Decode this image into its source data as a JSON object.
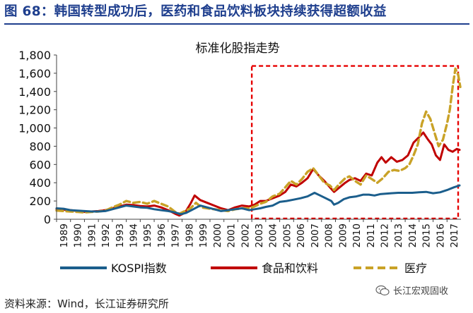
{
  "figure": {
    "title": "图 68：韩国转型成功后，医药和食品饮料板块持续获得超额收益",
    "source": "资料来源：Wind，长江证券研究所",
    "watermark": "长江宏观固收"
  },
  "colors": {
    "title": "#1f3f8e",
    "kospi": "#1b5e8c",
    "food": "#c00000",
    "medical": "#c9a227",
    "highlight_box": "#e60000"
  },
  "chart_data": {
    "type": "line",
    "title": "标准化股指走势",
    "xlabel": "",
    "ylabel": "",
    "ylim": [
      0,
      1800
    ],
    "yticks": [
      0,
      200,
      400,
      600,
      800,
      1000,
      1200,
      1400,
      1600,
      1800
    ],
    "ytick_labels": [
      "0",
      "200",
      "400",
      "600",
      "800",
      "1,000",
      "1,200",
      "1,400",
      "1,600",
      "1,800"
    ],
    "xlim": [
      1989,
      2018
    ],
    "xticks": [
      "1989",
      "1990",
      "1991",
      "1992",
      "1993",
      "1994",
      "1995",
      "1996",
      "1997",
      "1998",
      "1999",
      "2000",
      "2001",
      "2002",
      "2003",
      "2004",
      "2005",
      "2006",
      "2007",
      "2008",
      "2009",
      "2010",
      "2011",
      "2012",
      "2013",
      "2014",
      "2015",
      "2016",
      "2017"
    ],
    "highlight": {
      "x_start": 2003.0,
      "x_end": 2018.0,
      "y_start": 0,
      "y_end": 1680,
      "note": "red dashed rectangle"
    },
    "legend": {
      "position": "bottom"
    },
    "series": [
      {
        "name": "KOSPI指数",
        "style": "solid",
        "color": "#1b5e8c",
        "x": [
          1989,
          1989.5,
          1990,
          1990.5,
          1991,
          1991.5,
          1992,
          1992.5,
          1993,
          1993.5,
          1994,
          1994.5,
          1995,
          1995.5,
          1996,
          1996.5,
          1997,
          1997.5,
          1997.9,
          1998.3,
          1998.8,
          1999.3,
          1999.8,
          2000.3,
          2000.8,
          2001.3,
          2001.8,
          2002.3,
          2002.8,
          2003.2,
          2003.6,
          2004.0,
          2004.5,
          2005.0,
          2005.5,
          2006.0,
          2006.5,
          2007.0,
          2007.5,
          2007.9,
          2008.3,
          2008.7,
          2008.9,
          2009.2,
          2009.6,
          2010.0,
          2010.5,
          2011.0,
          2011.4,
          2011.8,
          2012.2,
          2012.6,
          2013.0,
          2013.5,
          2014.0,
          2014.5,
          2015.0,
          2015.5,
          2016.0,
          2016.5,
          2017.0,
          2017.5,
          2017.9
        ],
        "values": [
          120,
          115,
          100,
          95,
          90,
          85,
          85,
          90,
          110,
          130,
          150,
          140,
          130,
          125,
          110,
          100,
          90,
          75,
          55,
          70,
          110,
          150,
          130,
          110,
          90,
          100,
          110,
          120,
          100,
          110,
          120,
          135,
          150,
          190,
          200,
          215,
          230,
          250,
          290,
          260,
          230,
          200,
          160,
          180,
          220,
          240,
          250,
          270,
          270,
          260,
          275,
          280,
          285,
          290,
          290,
          290,
          295,
          300,
          285,
          295,
          320,
          350,
          370
        ]
      },
      {
        "name": "食品和饮料",
        "style": "solid",
        "color": "#c00000",
        "x": [
          1989,
          1989.5,
          1990,
          1990.5,
          1991,
          1991.5,
          1992,
          1992.5,
          1993,
          1993.5,
          1994,
          1994.5,
          1995,
          1995.5,
          1996,
          1996.5,
          1997,
          1997.5,
          1997.8,
          1998.2,
          1998.6,
          1998.9,
          1999.3,
          1999.8,
          2000.3,
          2000.8,
          2001.3,
          2001.8,
          2002.3,
          2002.8,
          2003.2,
          2003.6,
          2004.0,
          2004.5,
          2005.0,
          2005.4,
          2005.8,
          2006.2,
          2006.6,
          2007.0,
          2007.4,
          2007.8,
          2008.2,
          2008.6,
          2008.9,
          2009.3,
          2009.7,
          2010.0,
          2010.4,
          2010.8,
          2011.2,
          2011.6,
          2012.0,
          2012.3,
          2012.6,
          2013.0,
          2013.4,
          2013.8,
          2014.2,
          2014.6,
          2015.0,
          2015.3,
          2015.6,
          2015.9,
          2016.2,
          2016.5,
          2016.8,
          2017.1,
          2017.4,
          2017.7,
          2017.9
        ],
        "values": [
          110,
          105,
          100,
          90,
          80,
          85,
          90,
          100,
          120,
          140,
          160,
          155,
          145,
          140,
          150,
          130,
          100,
          60,
          40,
          70,
          170,
          260,
          210,
          180,
          150,
          120,
          100,
          130,
          150,
          140,
          160,
          200,
          200,
          230,
          260,
          300,
          380,
          360,
          400,
          450,
          550,
          480,
          420,
          350,
          300,
          350,
          400,
          430,
          450,
          420,
          500,
          480,
          620,
          680,
          620,
          680,
          630,
          650,
          700,
          840,
          900,
          950,
          880,
          820,
          700,
          650,
          820,
          760,
          740,
          770,
          760
        ]
      },
      {
        "name": "医疗",
        "style": "dashed",
        "color": "#c9a227",
        "x": [
          1989,
          1989.5,
          1990,
          1990.5,
          1991,
          1991.5,
          1992,
          1992.5,
          1993,
          1993.5,
          1994,
          1994.5,
          1995,
          1995.5,
          1996,
          1996.5,
          1997,
          1997.5,
          1997.8,
          1998.2,
          1998.6,
          1999.0,
          1999.4,
          1999.8,
          2000.3,
          2000.8,
          2001.3,
          2001.8,
          2002.3,
          2002.8,
          2003.2,
          2003.6,
          2004.0,
          2004.5,
          2005.0,
          2005.4,
          2005.8,
          2006.2,
          2006.6,
          2007.0,
          2007.4,
          2007.8,
          2008.2,
          2008.6,
          2008.9,
          2009.3,
          2009.7,
          2010.0,
          2010.4,
          2010.8,
          2011.2,
          2011.6,
          2012.0,
          2012.4,
          2012.8,
          2013.2,
          2013.6,
          2014.0,
          2014.3,
          2014.6,
          2014.9,
          2015.2,
          2015.5,
          2015.8,
          2016.1,
          2016.4,
          2016.7,
          2017.0,
          2017.2,
          2017.4,
          2017.6,
          2017.8,
          2017.95
        ],
        "values": [
          95,
          90,
          85,
          80,
          75,
          80,
          85,
          95,
          130,
          160,
          200,
          180,
          190,
          170,
          200,
          170,
          140,
          80,
          60,
          90,
          120,
          180,
          130,
          120,
          110,
          100,
          90,
          110,
          120,
          120,
          140,
          170,
          190,
          250,
          280,
          350,
          420,
          380,
          440,
          520,
          560,
          480,
          400,
          370,
          320,
          390,
          450,
          470,
          420,
          380,
          480,
          440,
          400,
          450,
          520,
          540,
          530,
          560,
          600,
          700,
          820,
          1050,
          1180,
          1100,
          950,
          800,
          870,
          1050,
          1200,
          1450,
          1650,
          1580,
          1450
        ]
      }
    ]
  }
}
